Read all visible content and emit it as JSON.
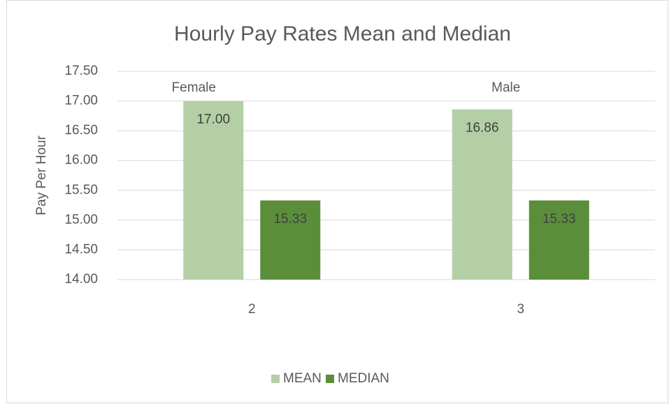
{
  "chart_data": {
    "type": "bar",
    "title": "Hourly Pay Rates Mean and Median",
    "y_label": "Pay Per Hour",
    "categories": [
      "2",
      "3"
    ],
    "annotations": [
      "Female",
      "Male"
    ],
    "series": [
      {
        "name": "MEAN",
        "color": "#b4cfa5",
        "values": [
          17.0,
          16.86
        ],
        "value_labels": [
          "17.00",
          "16.86"
        ]
      },
      {
        "name": "MEDIAN",
        "color": "#5b8e3a",
        "values": [
          15.33,
          15.33
        ],
        "value_labels": [
          "15.33",
          "15.33"
        ]
      }
    ],
    "ylim": [
      14,
      17.5
    ],
    "yticks": [
      {
        "value": 14,
        "label": "14.00"
      },
      {
        "value": 14.5,
        "label": "14.50"
      },
      {
        "value": 15,
        "label": "15.00"
      },
      {
        "value": 15.5,
        "label": "15.50"
      },
      {
        "value": 16,
        "label": "16.00"
      },
      {
        "value": 16.5,
        "label": "16.50"
      },
      {
        "value": 17,
        "label": "17.00"
      },
      {
        "value": 17.5,
        "label": "17.50"
      }
    ],
    "grid": true,
    "legend": "bottom"
  }
}
